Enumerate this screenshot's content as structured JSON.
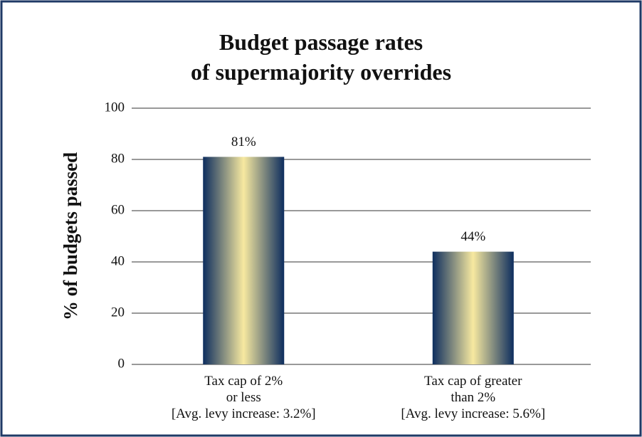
{
  "chart_data": {
    "type": "bar",
    "title": "Budget passage rates\nof supermajority overrides",
    "y_label": "% of budgets passed",
    "categories": [
      "Tax cap of 2%\nor less\n[Avg. levy increase: 3.2%]",
      "Tax cap of greater\nthan 2%\n[Avg. levy increase: 5.6%]"
    ],
    "values": [
      81,
      44
    ],
    "value_labels": [
      "81%",
      "44%"
    ],
    "color": "#0d2d5e",
    "highlight_color": "#f7e9a0",
    "ylim": [
      0,
      100
    ],
    "yticks": [
      0,
      20,
      40,
      60,
      80,
      100
    ],
    "grid": true
  }
}
